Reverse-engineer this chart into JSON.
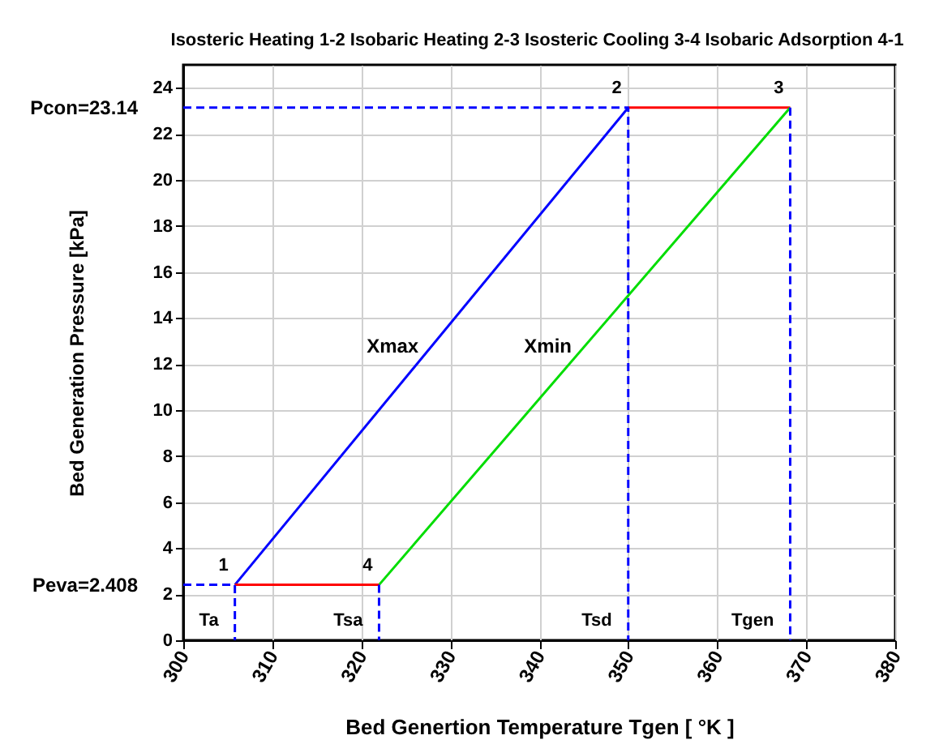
{
  "chart_data": {
    "type": "line",
    "title": "Isosteric Heating 1-2  Isobaric Heating 2-3  Isosteric Cooling 3-4  Isobaric Adsorption 4-1",
    "xlabel": "Bed Genertion Temperature Tgen  [ °K ]",
    "ylabel": "Bed Generation Pressure [kPa]",
    "xlim": [
      300,
      380
    ],
    "xticks": [
      300,
      310,
      320,
      330,
      340,
      350,
      360,
      370,
      380
    ],
    "ylim": [
      0,
      25
    ],
    "yticks": [
      0,
      2,
      4,
      6,
      8,
      10,
      12,
      14,
      16,
      18,
      20,
      22,
      24
    ],
    "grid": true,
    "marker": "none",
    "series": [
      {
        "name": "Xmax",
        "color": "#0000ff",
        "x": [
          305.8,
          350
        ],
        "values": [
          2.408,
          23.14
        ]
      },
      {
        "color": "#ff0000",
        "x": [
          350,
          368.2
        ],
        "values": [
          23.14,
          23.14
        ]
      },
      {
        "name": "Xmin",
        "color": "#00dd00",
        "x": [
          368.2,
          322
        ],
        "values": [
          23.14,
          2.408
        ]
      },
      {
        "color": "#ff0000",
        "x": [
          322,
          305.8
        ],
        "values": [
          2.408,
          2.408
        ]
      },
      {
        "color": "#0000ff",
        "line_style": "dashed",
        "x": [
          300,
          350,
          350
        ],
        "values": [
          23.14,
          23.14,
          0
        ]
      },
      {
        "color": "#0000ff",
        "line_style": "dashed",
        "x": [
          368.2,
          368.2
        ],
        "values": [
          23.14,
          0
        ]
      },
      {
        "color": "#0000ff",
        "line_style": "dashed",
        "x": [
          300,
          305.8,
          305.8
        ],
        "values": [
          2.408,
          2.408,
          0
        ]
      },
      {
        "color": "#0000ff",
        "line_style": "dashed",
        "x": [
          322,
          322
        ],
        "values": [
          2.408,
          0
        ]
      }
    ],
    "annotations": [
      {
        "text": "1",
        "x": 305.8,
        "y": 2.408
      },
      {
        "text": "2",
        "x": 350,
        "y": 23.14
      },
      {
        "text": "3",
        "x": 368.2,
        "y": 23.14
      },
      {
        "text": "4",
        "x": 322,
        "y": 2.408
      },
      {
        "text": "Ta",
        "x": 305.8,
        "y": 0
      },
      {
        "text": "Tsa",
        "x": 322,
        "y": 0
      },
      {
        "text": "Tsd",
        "x": 350,
        "y": 0
      },
      {
        "text": "Tgen",
        "x": 368.2,
        "y": 0
      },
      {
        "text": "Pcon=23.14",
        "x": 300,
        "y": 23.14
      },
      {
        "text": "Peva=2.408",
        "x": 300,
        "y": 2.408
      }
    ]
  }
}
